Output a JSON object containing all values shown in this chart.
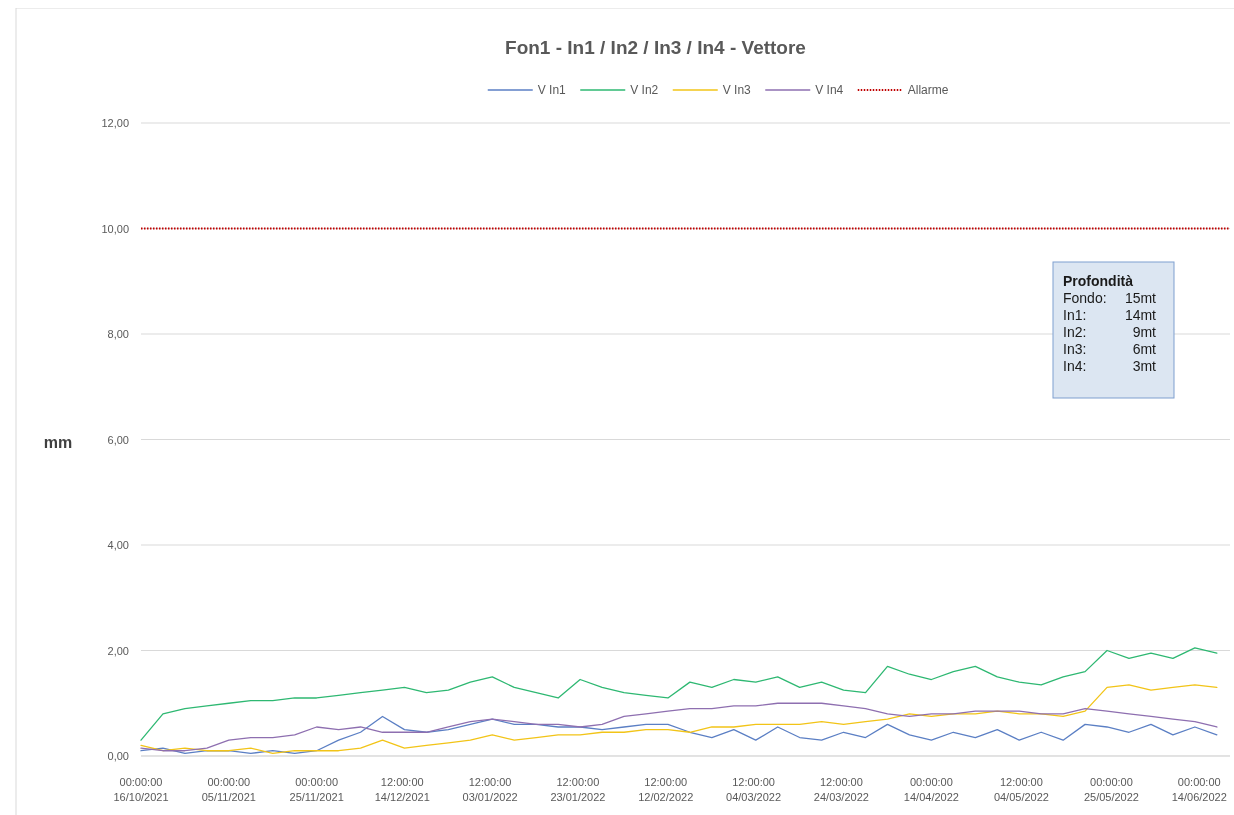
{
  "chart_data": {
    "type": "line",
    "title": "Fon1 - In1 / In2 / In3 / In4 - Vettore",
    "ylabel": "mm",
    "x": [
      "2021-10-16",
      "2021-10-21",
      "2021-10-26",
      "2021-10-31",
      "2021-11-05",
      "2021-11-10",
      "2021-11-15",
      "2021-11-20",
      "2021-11-25",
      "2021-11-30",
      "2021-12-05",
      "2021-12-10",
      "2021-12-15",
      "2021-12-20",
      "2021-12-25",
      "2021-12-30",
      "2022-01-04",
      "2022-01-09",
      "2022-01-14",
      "2022-01-19",
      "2022-01-24",
      "2022-01-29",
      "2022-02-03",
      "2022-02-08",
      "2022-02-13",
      "2022-02-18",
      "2022-02-23",
      "2022-02-28",
      "2022-03-05",
      "2022-03-10",
      "2022-03-15",
      "2022-03-20",
      "2022-03-25",
      "2022-03-30",
      "2022-04-04",
      "2022-04-09",
      "2022-04-14",
      "2022-04-19",
      "2022-04-24",
      "2022-04-29",
      "2022-05-04",
      "2022-05-09",
      "2022-05-14",
      "2022-05-19",
      "2022-05-24",
      "2022-05-29",
      "2022-06-03",
      "2022-06-08",
      "2022-06-13",
      "2022-06-18"
    ],
    "series": [
      {
        "name": "V In1",
        "color": "#5b7fc4",
        "values": [
          0.1,
          0.15,
          0.05,
          0.1,
          0.1,
          0.05,
          0.1,
          0.05,
          0.1,
          0.3,
          0.45,
          0.75,
          0.5,
          0.45,
          0.5,
          0.6,
          0.7,
          0.6,
          0.6,
          0.55,
          0.55,
          0.5,
          0.55,
          0.6,
          0.6,
          0.45,
          0.35,
          0.5,
          0.3,
          0.55,
          0.35,
          0.3,
          0.45,
          0.35,
          0.6,
          0.4,
          0.3,
          0.45,
          0.35,
          0.5,
          0.3,
          0.45,
          0.3,
          0.6,
          0.55,
          0.45,
          0.6,
          0.4,
          0.55,
          0.4
        ]
      },
      {
        "name": "V In2",
        "color": "#2eb872",
        "values": [
          0.3,
          0.8,
          0.9,
          0.95,
          1.0,
          1.05,
          1.05,
          1.1,
          1.1,
          1.15,
          1.2,
          1.25,
          1.3,
          1.2,
          1.25,
          1.4,
          1.5,
          1.3,
          1.2,
          1.1,
          1.45,
          1.3,
          1.2,
          1.15,
          1.1,
          1.4,
          1.3,
          1.45,
          1.4,
          1.5,
          1.3,
          1.4,
          1.25,
          1.2,
          1.7,
          1.55,
          1.45,
          1.6,
          1.7,
          1.5,
          1.4,
          1.35,
          1.5,
          1.6,
          2.0,
          1.85,
          1.95,
          1.85,
          2.05,
          1.95
        ]
      },
      {
        "name": "V In3",
        "color": "#f2c417",
        "values": [
          0.2,
          0.1,
          0.15,
          0.1,
          0.1,
          0.15,
          0.05,
          0.1,
          0.1,
          0.1,
          0.15,
          0.3,
          0.15,
          0.2,
          0.25,
          0.3,
          0.4,
          0.3,
          0.35,
          0.4,
          0.4,
          0.45,
          0.45,
          0.5,
          0.5,
          0.45,
          0.55,
          0.55,
          0.6,
          0.6,
          0.6,
          0.65,
          0.6,
          0.65,
          0.7,
          0.8,
          0.75,
          0.8,
          0.8,
          0.85,
          0.8,
          0.8,
          0.75,
          0.85,
          1.3,
          1.35,
          1.25,
          1.3,
          1.35,
          1.3
        ]
      },
      {
        "name": "V In4",
        "color": "#8e6fb0",
        "values": [
          0.15,
          0.1,
          0.1,
          0.15,
          0.3,
          0.35,
          0.35,
          0.4,
          0.55,
          0.5,
          0.55,
          0.45,
          0.45,
          0.45,
          0.55,
          0.65,
          0.7,
          0.65,
          0.6,
          0.6,
          0.55,
          0.6,
          0.75,
          0.8,
          0.85,
          0.9,
          0.9,
          0.95,
          0.95,
          1.0,
          1.0,
          1.0,
          0.95,
          0.9,
          0.8,
          0.75,
          0.8,
          0.8,
          0.85,
          0.85,
          0.85,
          0.8,
          0.8,
          0.9,
          0.85,
          0.8,
          0.75,
          0.7,
          0.65,
          0.55
        ]
      },
      {
        "name": "Allarme",
        "color": "#c00000",
        "line_style": "dotted",
        "x": [
          "2021-10-16",
          "2022-06-21"
        ],
        "values": [
          10,
          10
        ]
      }
    ],
    "xlim": [
      "2021-10-16",
      "2022-06-21"
    ],
    "xticks": [
      {
        "value": "2021-10-16T00:00",
        "label": "00:00:00\n16/10/2021"
      },
      {
        "value": "2021-11-05T00:00",
        "label": "00:00:00\n05/11/2021"
      },
      {
        "value": "2021-11-25T00:00",
        "label": "00:00:00\n25/11/2021"
      },
      {
        "value": "2021-12-14T12:00",
        "label": "12:00:00\n14/12/2021"
      },
      {
        "value": "2022-01-03T12:00",
        "label": "12:00:00\n03/01/2022"
      },
      {
        "value": "2022-01-23T12:00",
        "label": "12:00:00\n23/01/2022"
      },
      {
        "value": "2022-02-12T12:00",
        "label": "12:00:00\n12/02/2022"
      },
      {
        "value": "2022-03-04T12:00",
        "label": "12:00:00\n04/03/2022"
      },
      {
        "value": "2022-03-24T12:00",
        "label": "12:00:00\n24/03/2022"
      },
      {
        "value": "2022-04-14T00:00",
        "label": "00:00:00\n14/04/2022"
      },
      {
        "value": "2022-05-04T12:00",
        "label": "12:00:00\n04/05/2022"
      },
      {
        "value": "2022-05-25T00:00",
        "label": "00:00:00\n25/05/2022"
      },
      {
        "value": "2022-06-14T00:00",
        "label": "00:00:00\n14/06/2022"
      }
    ],
    "ylim": [
      0,
      12
    ],
    "yticks": [
      {
        "value": 0,
        "label": "0,00"
      },
      {
        "value": 2,
        "label": "2,00"
      },
      {
        "value": 4,
        "label": "4,00"
      },
      {
        "value": 6,
        "label": "6,00"
      },
      {
        "value": 8,
        "label": "8,00"
      },
      {
        "value": 10,
        "label": "10,00"
      },
      {
        "value": 12,
        "label": "12,00"
      }
    ],
    "grid": "y",
    "legend": "top",
    "line_style": "solid",
    "marker": "none",
    "annotations": [
      "Profondità",
      "Fondo: 15mt",
      "In1: 14mt",
      "In2: 9mt",
      "In3: 6mt",
      "In4: 3mt"
    ]
  }
}
